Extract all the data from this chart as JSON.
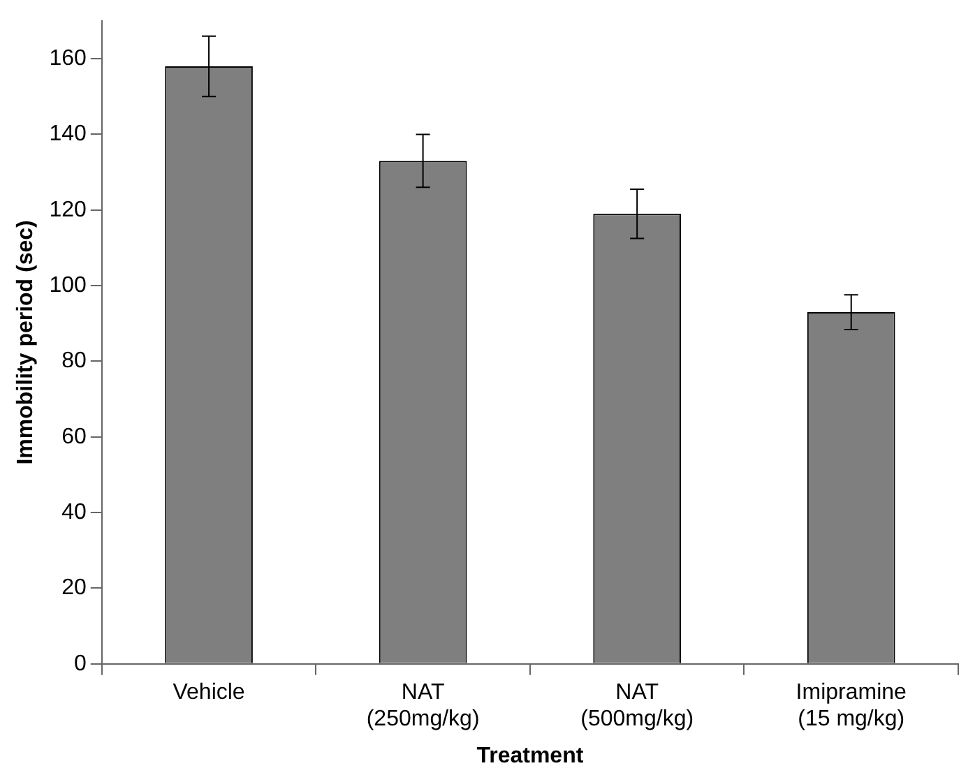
{
  "chart_data": {
    "type": "bar",
    "xlabel": "Treatment",
    "ylabel": "Immobility period (sec)",
    "categories": [
      "Vehicle",
      "NAT\n(250mg/kg)",
      "NAT\n(500mg/kg)",
      "Imipramine\n(15 mg/kg)"
    ],
    "values": [
      158,
      133,
      119,
      93
    ],
    "errors": [
      8,
      7,
      6.5,
      4.6
    ],
    "color": "#7f7f7f",
    "ylim": [
      0,
      170
    ],
    "yticks": [
      0,
      20,
      40,
      60,
      80,
      100,
      120,
      140,
      160
    ],
    "grid": false,
    "legend": false
  }
}
